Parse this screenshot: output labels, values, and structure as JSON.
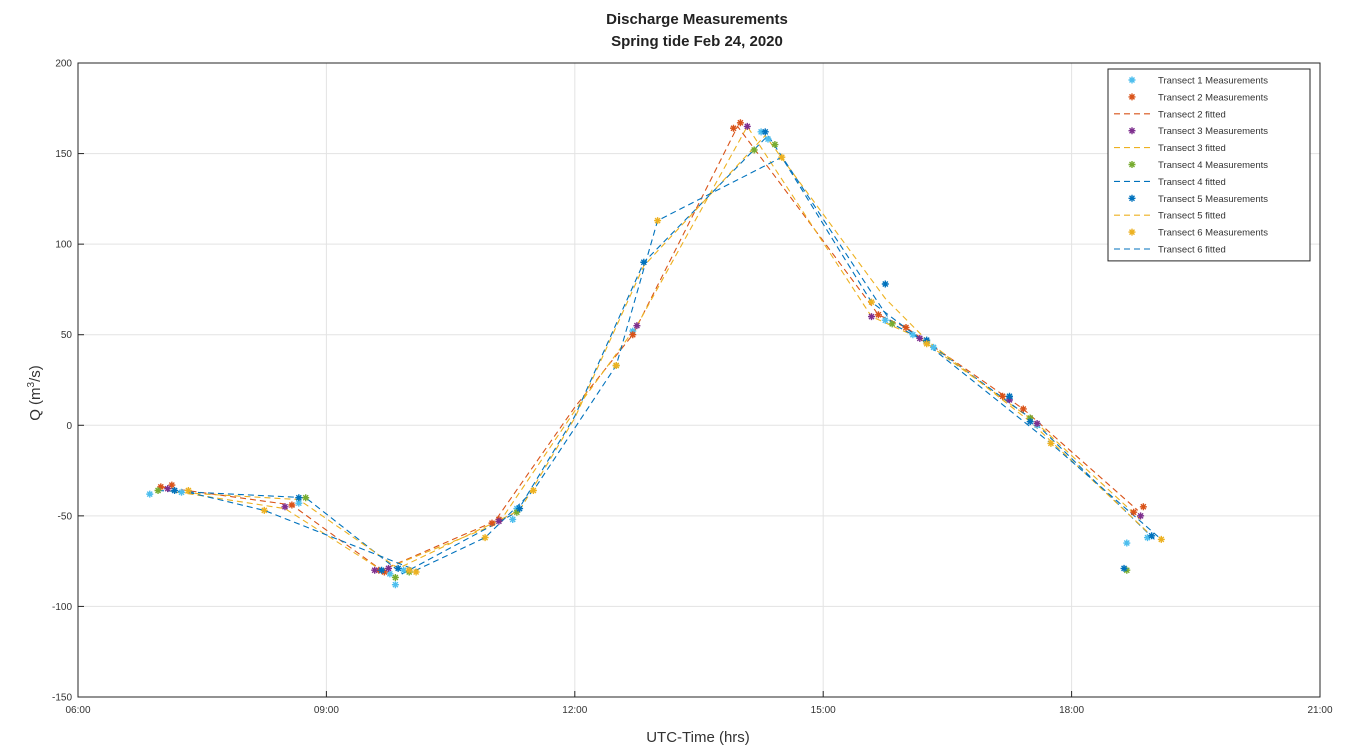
{
  "chart_data": {
    "type": "line",
    "title": "Discharge Measurements",
    "subtitle": "Spring tide Feb 24, 2020",
    "xlabel": "UTC-Time (hrs)",
    "ylabel_main": "Q (m",
    "ylabel_sup": "3",
    "ylabel_tail": "/s)",
    "xlim": [
      "06:00",
      "21:00"
    ],
    "ylim": [
      -150,
      200
    ],
    "x_ticks": [
      "06:00",
      "09:00",
      "12:00",
      "15:00",
      "18:00",
      "21:00"
    ],
    "y_ticks": [
      -150,
      -100,
      -50,
      0,
      50,
      100,
      150,
      200
    ],
    "grid": true,
    "legend_position": "top-right",
    "series": [
      {
        "name": "Transect 1 Measurements",
        "kind": "markers",
        "color": "#4dbeee",
        "points": [
          [
            "06:52",
            -38
          ],
          [
            "07:15",
            -37
          ],
          [
            "08:40",
            -43
          ],
          [
            "09:46",
            -82
          ],
          [
            "09:50",
            -88
          ],
          [
            "09:56",
            -80
          ],
          [
            "11:15",
            -52
          ],
          [
            "11:18",
            -46
          ],
          [
            "12:42",
            52
          ],
          [
            "14:15",
            162
          ],
          [
            "14:20",
            158
          ],
          [
            "15:45",
            58
          ],
          [
            "16:05",
            50
          ],
          [
            "16:20",
            43
          ],
          [
            "17:15",
            15
          ],
          [
            "17:35",
            0
          ],
          [
            "18:40",
            -65
          ],
          [
            "18:55",
            -62
          ]
        ]
      },
      {
        "name": "Transect 2 Measurements",
        "kind": "markers",
        "color": "#d95319",
        "points": [
          [
            "07:00",
            -34
          ],
          [
            "07:08",
            -33
          ],
          [
            "08:35",
            -44
          ],
          [
            "09:38",
            -80
          ],
          [
            "09:42",
            -81
          ],
          [
            "11:00",
            -54
          ],
          [
            "11:05",
            -52
          ],
          [
            "12:42",
            50
          ],
          [
            "13:55",
            164
          ],
          [
            "14:00",
            167
          ],
          [
            "15:40",
            61
          ],
          [
            "16:00",
            54
          ],
          [
            "17:10",
            16
          ],
          [
            "17:25",
            9
          ],
          [
            "18:45",
            -48
          ],
          [
            "18:52",
            -45
          ]
        ]
      },
      {
        "name": "Transect 2 fitted",
        "kind": "line",
        "color": "#d95319",
        "points": [
          [
            "07:00",
            -34
          ],
          [
            "08:35",
            -44
          ],
          [
            "09:40",
            -80
          ],
          [
            "11:02",
            -53
          ],
          [
            "12:00",
            10
          ],
          [
            "12:42",
            50
          ],
          [
            "13:58",
            165
          ],
          [
            "15:40",
            61
          ],
          [
            "16:00",
            54
          ],
          [
            "17:25",
            9
          ],
          [
            "18:48",
            -47
          ]
        ]
      },
      {
        "name": "Transect 3 Measurements",
        "kind": "markers",
        "color": "#7e2f8e",
        "points": [
          [
            "07:05",
            -35
          ],
          [
            "08:30",
            -45
          ],
          [
            "09:35",
            -80
          ],
          [
            "09:45",
            -79
          ],
          [
            "11:05",
            -53
          ],
          [
            "12:45",
            55
          ],
          [
            "14:05",
            165
          ],
          [
            "15:35",
            60
          ],
          [
            "16:10",
            48
          ],
          [
            "17:15",
            14
          ],
          [
            "17:35",
            1
          ],
          [
            "18:50",
            -50
          ]
        ]
      },
      {
        "name": "Transect 3 fitted",
        "kind": "line",
        "color": "#edb120",
        "points": [
          [
            "07:05",
            -36
          ],
          [
            "08:30",
            -46
          ],
          [
            "09:40",
            -80
          ],
          [
            "11:05",
            -54
          ],
          [
            "12:00",
            8
          ],
          [
            "12:45",
            55
          ],
          [
            "14:05",
            165
          ],
          [
            "15:35",
            60
          ],
          [
            "16:10",
            48
          ],
          [
            "17:35",
            1
          ],
          [
            "18:50",
            -52
          ]
        ]
      },
      {
        "name": "Transect 4 Measurements",
        "kind": "markers",
        "color": "#77ac30",
        "points": [
          [
            "06:58",
            -36
          ],
          [
            "08:45",
            -40
          ],
          [
            "09:50",
            -84
          ],
          [
            "10:00",
            -81
          ],
          [
            "11:18",
            -48
          ],
          [
            "12:30",
            33
          ],
          [
            "14:10",
            152
          ],
          [
            "14:25",
            155
          ],
          [
            "15:50",
            56
          ],
          [
            "16:15",
            46
          ],
          [
            "17:30",
            4
          ],
          [
            "18:40",
            -80
          ]
        ]
      },
      {
        "name": "Transect 4 fitted",
        "kind": "line",
        "color": "#0072bd",
        "points": [
          [
            "06:58",
            -36
          ],
          [
            "08:45",
            -40
          ],
          [
            "09:55",
            -82
          ],
          [
            "11:18",
            -48
          ],
          [
            "12:00",
            5
          ],
          [
            "12:50",
            90
          ],
          [
            "14:20",
            160
          ],
          [
            "15:50",
            56
          ],
          [
            "16:15",
            46
          ],
          [
            "17:30",
            4
          ],
          [
            "19:00",
            -63
          ]
        ]
      },
      {
        "name": "Transect 5 Measurements",
        "kind": "markers",
        "color": "#0072bd",
        "points": [
          [
            "07:10",
            -36
          ],
          [
            "08:40",
            -40
          ],
          [
            "09:40",
            -80
          ],
          [
            "09:52",
            -79
          ],
          [
            "11:20",
            -46
          ],
          [
            "12:50",
            90
          ],
          [
            "14:18",
            162
          ],
          [
            "15:45",
            78
          ],
          [
            "16:15",
            47
          ],
          [
            "17:15",
            16
          ],
          [
            "17:30",
            2
          ],
          [
            "18:38",
            -79
          ],
          [
            "18:58",
            -61
          ]
        ]
      },
      {
        "name": "Transect 5 fitted",
        "kind": "line",
        "color": "#edb120",
        "points": [
          [
            "07:10",
            -37
          ],
          [
            "08:40",
            -41
          ],
          [
            "09:52",
            -79
          ],
          [
            "11:20",
            -47
          ],
          [
            "12:00",
            4
          ],
          [
            "12:50",
            88
          ],
          [
            "14:18",
            160
          ],
          [
            "15:45",
            70
          ],
          [
            "16:15",
            47
          ],
          [
            "17:30",
            2
          ],
          [
            "18:58",
            -61
          ]
        ]
      },
      {
        "name": "Transect 6 Measurements",
        "kind": "markers",
        "color": "#edb120",
        "points": [
          [
            "07:20",
            -36
          ],
          [
            "08:15",
            -47
          ],
          [
            "10:00",
            -80
          ],
          [
            "10:05",
            -81
          ],
          [
            "10:55",
            -62
          ],
          [
            "11:30",
            -36
          ],
          [
            "12:30",
            33
          ],
          [
            "13:00",
            113
          ],
          [
            "14:30",
            148
          ],
          [
            "15:35",
            68
          ],
          [
            "16:15",
            45
          ],
          [
            "17:45",
            -10
          ],
          [
            "19:05",
            -63
          ]
        ]
      },
      {
        "name": "Transect 6 fitted",
        "kind": "line",
        "color": "#0072bd",
        "points": [
          [
            "07:20",
            -37
          ],
          [
            "08:15",
            -47
          ],
          [
            "10:05",
            -80
          ],
          [
            "10:55",
            -62
          ],
          [
            "11:30",
            -36
          ],
          [
            "12:30",
            33
          ],
          [
            "13:00",
            113
          ],
          [
            "14:30",
            148
          ],
          [
            "15:35",
            68
          ],
          [
            "16:15",
            45
          ],
          [
            "17:45",
            -10
          ],
          [
            "19:05",
            -63
          ]
        ]
      }
    ]
  }
}
